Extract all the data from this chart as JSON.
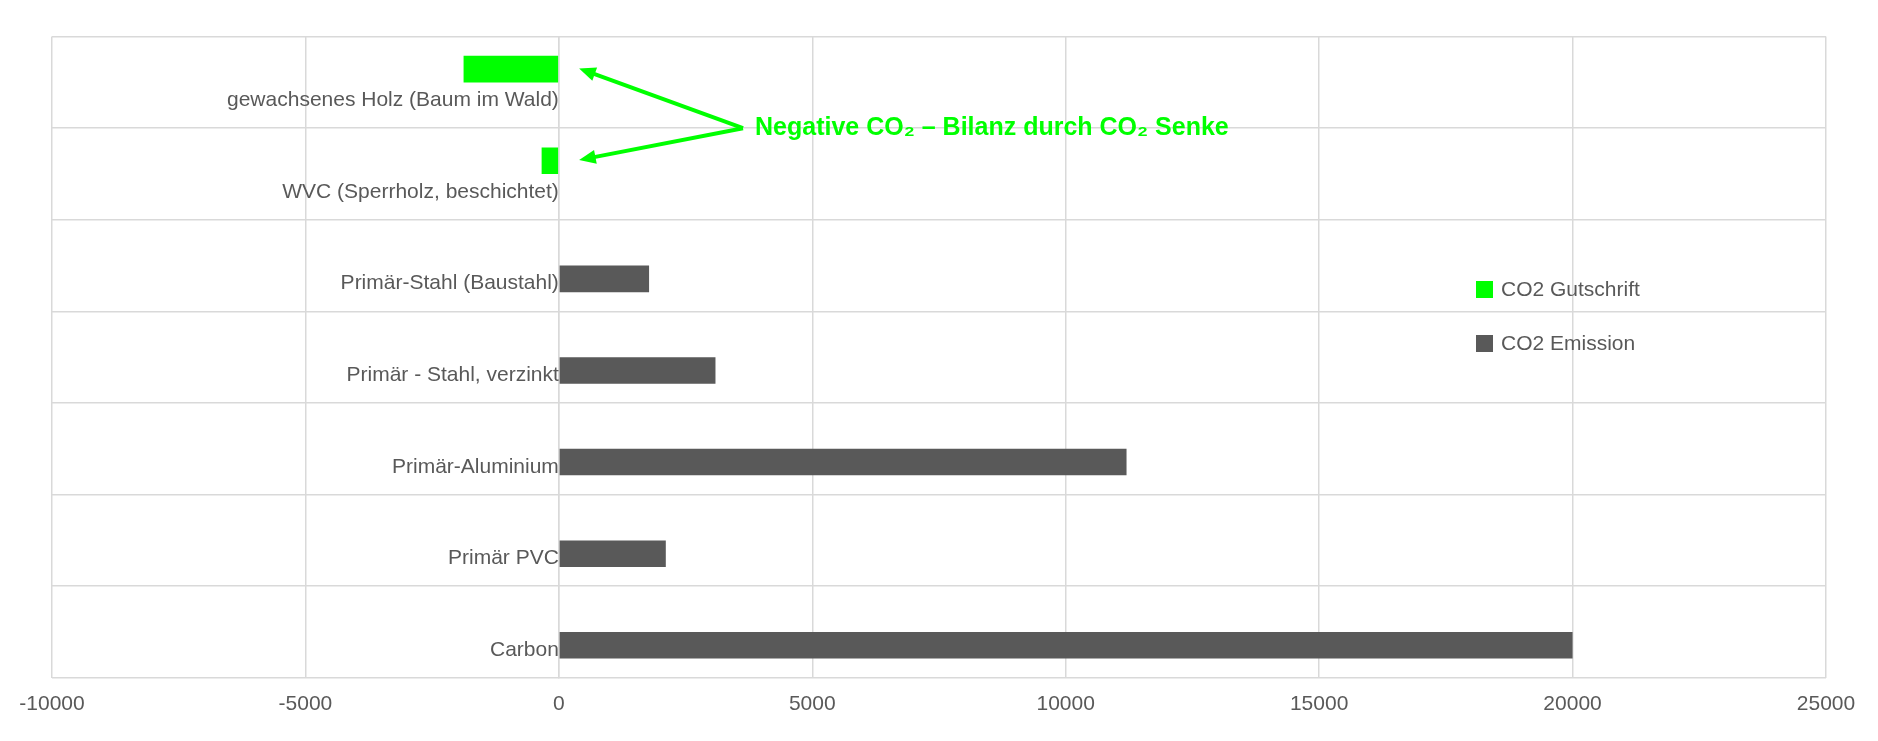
{
  "chart_data": {
    "type": "bar",
    "orientation": "horizontal",
    "categories": [
      "gewachsenes Holz (Baum im Wald)",
      "WVC (Sperrholz, beschichtet)",
      "Primär-Stahl (Baustahl)",
      "Primär - Stahl, verzinkt",
      "Primär-Aluminium",
      "Primär PVC",
      "Carbon"
    ],
    "series": [
      {
        "name": "CO2 Gutschrift",
        "color": "#00ff00",
        "values": [
          -1880,
          -340,
          null,
          null,
          null,
          null,
          null
        ]
      },
      {
        "name": "CO2 Emission",
        "color": "#595959",
        "values": [
          null,
          null,
          1780,
          3090,
          11200,
          2110,
          20000
        ]
      }
    ],
    "xlim": [
      -10000,
      25000
    ],
    "xticks": [
      -10000,
      -5000,
      0,
      5000,
      10000,
      15000,
      20000,
      25000
    ],
    "grid": true,
    "legend": "right",
    "annotations": [
      "Negative CO₂ – Bilanz durch CO₂ Senke"
    ]
  }
}
